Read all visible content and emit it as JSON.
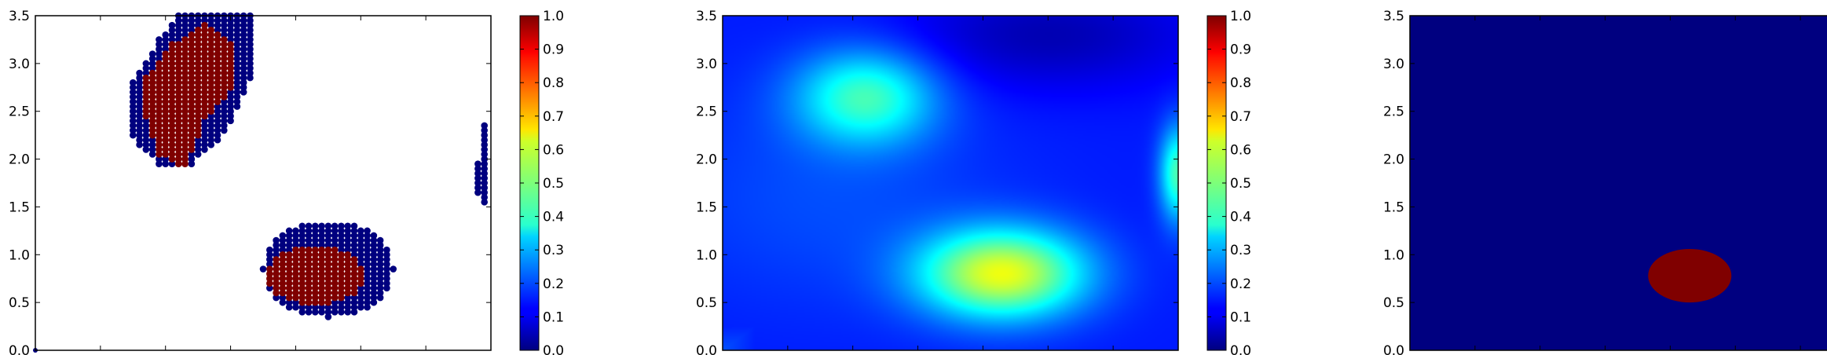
{
  "chart_data": [
    {
      "type": "scatter",
      "title": "",
      "xlabel": "",
      "ylabel": "",
      "xlim": [
        0.0,
        3.5
      ],
      "ylim": [
        0.0,
        3.5
      ],
      "x_ticks": [
        "0.0",
        "0.5",
        "1.0",
        "1.5",
        "2.0",
        "2.5",
        "3.0",
        "3.5"
      ],
      "y_ticks": [
        "0.0",
        "0.5",
        "1.0",
        "1.5",
        "2.0",
        "2.5",
        "3.0",
        "3.5"
      ],
      "colorbar": {
        "range": [
          0.0,
          1.0
        ],
        "ticks": [
          "0.0",
          "0.1",
          "0.2",
          "0.3",
          "0.4",
          "0.5",
          "0.6",
          "0.7",
          "0.8",
          "0.9",
          "1.0"
        ],
        "colormap": "jet"
      },
      "marker_color_low": "#00007f",
      "marker_color_high": "#7f0000",
      "clusters": [
        {
          "name": "",
          "value": 0,
          "kind": "band",
          "polygon": [
            [
              0.72,
              2.75
            ],
            [
              0.72,
              2.25
            ],
            [
              0.95,
              1.95
            ],
            [
              1.2,
              1.95
            ],
            [
              1.45,
              2.25
            ],
            [
              1.7,
              2.95
            ],
            [
              1.7,
              3.5
            ],
            [
              1.1,
              3.5
            ],
            [
              0.95,
              3.25
            ]
          ]
        },
        {
          "name": "",
          "value": 1,
          "kind": "core",
          "polygon": [
            [
              0.82,
              2.55
            ],
            [
              0.95,
              2.05
            ],
            [
              1.15,
              1.9
            ],
            [
              1.2,
              2.05
            ],
            [
              1.3,
              2.4
            ],
            [
              1.55,
              2.8
            ],
            [
              1.55,
              3.2
            ],
            [
              1.3,
              3.4
            ],
            [
              1.05,
              3.2
            ],
            [
              0.85,
              2.85
            ]
          ]
        },
        {
          "name": "",
          "value": 0,
          "kind": "ellipse",
          "cx": 2.25,
          "cy": 0.85,
          "rx": 0.5,
          "ry": 0.5
        },
        {
          "name": "",
          "value": 1,
          "kind": "ellipse",
          "cx": 2.15,
          "cy": 0.78,
          "rx": 0.38,
          "ry": 0.3
        },
        {
          "name": "",
          "value": 0,
          "kind": "line",
          "points": [
            [
              3.45,
              2.35
            ],
            [
              3.45,
              1.55
            ]
          ]
        },
        {
          "name": "",
          "value": 0,
          "kind": "line",
          "points": [
            [
              3.4,
              2.0
            ],
            [
              3.4,
              1.65
            ]
          ]
        }
      ]
    },
    {
      "type": "heatmap",
      "title": "",
      "xlabel": "",
      "ylabel": "",
      "xlim": [
        0.0,
        3.5
      ],
      "ylim": [
        0.0,
        3.5
      ],
      "x_ticks": [
        "0.0",
        "0.5",
        "1.0",
        "1.5",
        "2.0",
        "2.5",
        "3.0",
        "3.5"
      ],
      "y_ticks": [
        "0.0",
        "0.5",
        "1.0",
        "1.5",
        "2.0",
        "2.5",
        "3.0",
        "3.5"
      ],
      "colorbar": {
        "range": [
          0.0,
          1.0
        ],
        "ticks": [
          "0.0",
          "0.1",
          "0.2",
          "0.3",
          "0.4",
          "0.5",
          "0.6",
          "0.7",
          "0.8",
          "0.9",
          "1.0"
        ],
        "colormap": "jet"
      },
      "base_level": 0.15,
      "peaks": [
        {
          "cx": 2.15,
          "cy": 0.8,
          "sx": 0.45,
          "sy": 0.33,
          "amp": 0.45
        },
        {
          "cx": 1.1,
          "cy": 2.65,
          "sx": 0.38,
          "sy": 0.35,
          "amp": 0.28
        },
        {
          "cx": 3.5,
          "cy": 1.85,
          "sx": 0.1,
          "sy": 0.35,
          "amp": 0.3
        },
        {
          "cx": 0.8,
          "cy": 1.6,
          "sx": 0.9,
          "sy": 0.8,
          "amp": 0.05
        },
        {
          "cx": 2.5,
          "cy": 3.3,
          "sx": 0.8,
          "sy": 0.4,
          "amp": -0.1
        }
      ]
    },
    {
      "type": "heatmap",
      "title": "",
      "xlabel": "",
      "ylabel": "",
      "xlim": [
        0.0,
        3.5
      ],
      "ylim": [
        0.0,
        3.5
      ],
      "x_ticks": [
        "0.0",
        "0.5",
        "1.0",
        "1.5",
        "2.0",
        "2.5",
        "3.0",
        "3.5"
      ],
      "y_ticks": [
        "0.0",
        "0.5",
        "1.0",
        "1.5",
        "2.0",
        "2.5",
        "3.0",
        "3.5"
      ],
      "colorbar": {
        "range": [
          0.0,
          1.0
        ],
        "ticks": [
          "0.0",
          "0.1",
          "0.2",
          "0.3",
          "0.4",
          "0.5",
          "0.6",
          "0.7",
          "0.8",
          "0.9",
          "1.0"
        ],
        "colormap": "jet"
      },
      "background_value": 0.0,
      "regions": [
        {
          "value": 1.0,
          "cx": 2.15,
          "cy": 0.78,
          "rx": 0.32,
          "ry": 0.28
        }
      ]
    }
  ]
}
